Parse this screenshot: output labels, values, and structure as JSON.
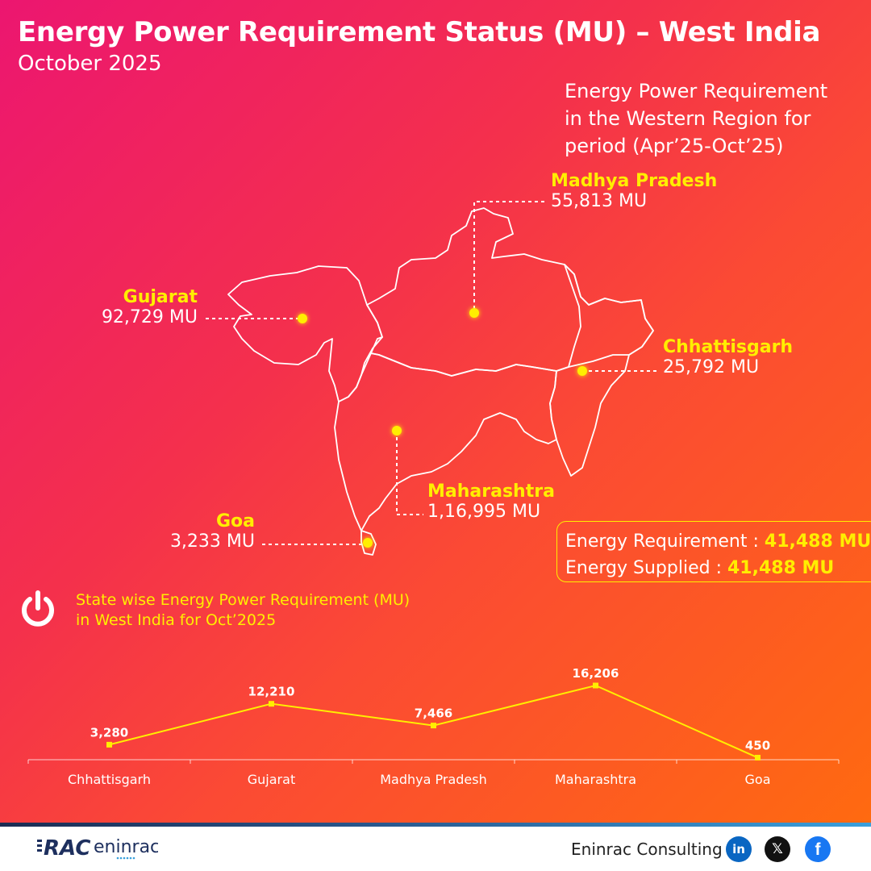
{
  "header": {
    "title": "Energy Power Requirement Status (MU) – West India",
    "subtitle": "October 2025",
    "period_note_lines": [
      "Energy Power Requirement",
      "in the Western Region for",
      "period (Apr’25-Oct’25)"
    ]
  },
  "map_labels": {
    "madhya_pradesh": {
      "name": "Madhya Pradesh",
      "value": "55,813 MU"
    },
    "gujarat": {
      "name": "Gujarat",
      "value": "92,729 MU"
    },
    "chhattisgarh": {
      "name": "Chhattisgarh",
      "value": "25,792 MU"
    },
    "maharashtra": {
      "name": "Maharashtra",
      "value": "1,16,995 MU"
    },
    "goa": {
      "name": "Goa",
      "value": "3,233 MU"
    }
  },
  "summary": {
    "requirement_label": "Energy Requirement :",
    "requirement_value": "41,488 MU",
    "supplied_label": "Energy Supplied :",
    "supplied_value": "41,488 MU"
  },
  "chart_section": {
    "title_lines": [
      "State wise Energy Power Requirement (MU)",
      "in West India for Oct’2025"
    ],
    "icon": "power-icon"
  },
  "chart_data": {
    "type": "line",
    "title": "State wise Energy Power Requirement (MU) in West India for Oct’2025",
    "categories": [
      "Chhattisgarh",
      "Gujarat",
      "Madhya Pradesh",
      "Maharashtra",
      "Goa"
    ],
    "values": [
      3280,
      12210,
      7466,
      16206,
      450
    ],
    "data_labels": [
      "3,280",
      "12,210",
      "7,466",
      "16,206",
      "450"
    ],
    "ylim": [
      0,
      16206
    ],
    "grid": false,
    "line_color": "#ffee00"
  },
  "footer": {
    "logo_mark": "RAC",
    "logo_text": "eninrac",
    "company": "Eninrac Consulting",
    "social": {
      "linkedin": "in",
      "x": "𝕏",
      "facebook": "f"
    }
  },
  "colors": {
    "accent": "#ffee00",
    "text": "#ffffff"
  }
}
